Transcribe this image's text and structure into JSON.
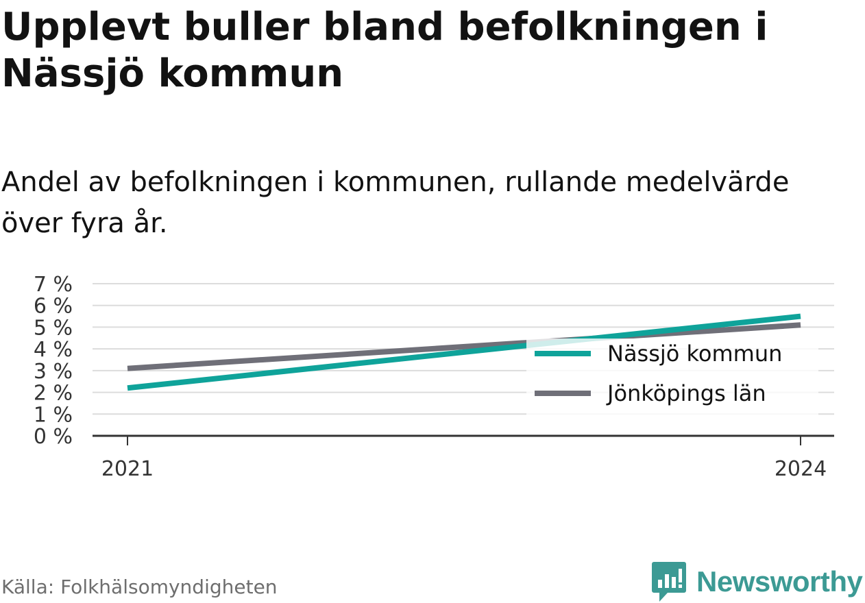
{
  "header": {
    "title": "Upplevt buller bland befolkningen i Nässjö kommun",
    "subtitle": "Andel av befolkningen i kommunen, rullande medelvärde över fyra år."
  },
  "footer": {
    "source": "Källa: Folkhälsomyndigheten",
    "brand": "Newsworthy"
  },
  "colors": {
    "nassjo": "#0fa39a",
    "lan": "#6f6f78",
    "grid": "#dcdcdc",
    "axis": "#333333",
    "brand": "#3c9a94"
  },
  "chart_data": {
    "type": "line",
    "title": "Upplevt buller bland befolkningen i Nässjö kommun",
    "subtitle": "Andel av befolkningen i kommunen, rullande medelvärde över fyra år.",
    "x": [
      2021,
      2024
    ],
    "x_tick_labels": [
      "2021",
      "2024"
    ],
    "ylim": [
      0,
      7
    ],
    "y_ticks": [
      0,
      1,
      2,
      3,
      4,
      5,
      6,
      7
    ],
    "y_tick_labels": [
      "0 %",
      "1 %",
      "2 %",
      "3 %",
      "4 %",
      "5 %",
      "6 %",
      "7 %"
    ],
    "grid": true,
    "legend": "bottom-right",
    "series": [
      {
        "name": "Nässjö kommun",
        "values": [
          2.2,
          5.5
        ],
        "color": "#0fa39a"
      },
      {
        "name": "Jönköpings län",
        "values": [
          3.1,
          5.1
        ],
        "color": "#6f6f78"
      }
    ]
  }
}
